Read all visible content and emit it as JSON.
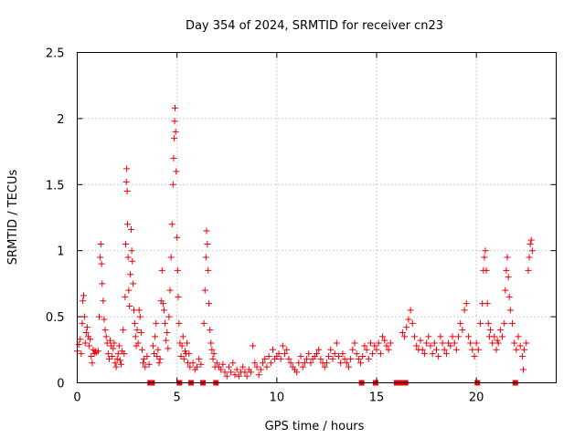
{
  "chart_data": {
    "type": "scatter",
    "title": "Day 354 of 2024, SRMTID for receiver cn23",
    "xlabel": "GPS time / hours",
    "ylabel": "SRMTID / TECUs",
    "xlim": [
      0,
      24
    ],
    "ylim": [
      0,
      2.5
    ],
    "xticks": [
      0,
      5,
      10,
      15,
      20
    ],
    "xtick_labels": [
      "0",
      "5",
      "10",
      "15",
      "20"
    ],
    "yticks": [
      0,
      0.5,
      1,
      1.5,
      2,
      2.5
    ],
    "ytick_labels": [
      "0",
      "0.5",
      "1",
      "1.5",
      "2",
      "2.5"
    ],
    "grid": true,
    "marker": "+",
    "color": "#e8000b",
    "series": [
      {
        "name": "cn23",
        "points": [
          [
            0.0,
            0.24
          ],
          [
            0.08,
            0.29
          ],
          [
            0.15,
            0.33
          ],
          [
            0.2,
            0.22
          ],
          [
            0.25,
            0.45
          ],
          [
            0.28,
            0.62
          ],
          [
            0.32,
            0.66
          ],
          [
            0.36,
            0.5
          ],
          [
            0.4,
            0.3
          ],
          [
            0.45,
            0.38
          ],
          [
            0.5,
            0.42
          ],
          [
            0.55,
            0.35
          ],
          [
            0.6,
            0.28
          ],
          [
            0.65,
            0.33
          ],
          [
            0.7,
            0.2
          ],
          [
            0.75,
            0.15
          ],
          [
            0.8,
            0.25
          ],
          [
            0.85,
            0.22
          ],
          [
            0.9,
            0.24
          ],
          [
            0.95,
            0.23
          ],
          [
            1.05,
            0.24
          ],
          [
            1.1,
            0.5
          ],
          [
            1.15,
            0.95
          ],
          [
            1.18,
            1.05
          ],
          [
            1.22,
            0.9
          ],
          [
            1.25,
            0.75
          ],
          [
            1.3,
            0.62
          ],
          [
            1.35,
            0.48
          ],
          [
            1.4,
            0.4
          ],
          [
            1.45,
            0.35
          ],
          [
            1.5,
            0.3
          ],
          [
            1.55,
            0.22
          ],
          [
            1.6,
            0.18
          ],
          [
            1.65,
            0.32
          ],
          [
            1.7,
            0.28
          ],
          [
            1.75,
            0.2
          ],
          [
            1.8,
            0.26
          ],
          [
            1.85,
            0.3
          ],
          [
            1.9,
            0.15
          ],
          [
            1.95,
            0.12
          ],
          [
            2.0,
            0.18
          ],
          [
            2.05,
            0.22
          ],
          [
            2.1,
            0.28
          ],
          [
            2.15,
            0.17
          ],
          [
            2.2,
            0.14
          ],
          [
            2.25,
            0.24
          ],
          [
            2.3,
            0.4
          ],
          [
            2.35,
            0.22
          ],
          [
            2.4,
            0.65
          ],
          [
            2.43,
            1.05
          ],
          [
            2.46,
            1.52
          ],
          [
            2.48,
            1.62
          ],
          [
            2.5,
            1.45
          ],
          [
            2.52,
            1.2
          ],
          [
            2.55,
            0.95
          ],
          [
            2.58,
            0.7
          ],
          [
            2.62,
            0.58
          ],
          [
            2.66,
            0.82
          ],
          [
            2.7,
            1.16
          ],
          [
            2.73,
            1.0
          ],
          [
            2.76,
            0.92
          ],
          [
            2.8,
            0.75
          ],
          [
            2.84,
            0.55
          ],
          [
            2.88,
            0.45
          ],
          [
            2.92,
            0.35
          ],
          [
            2.96,
            0.28
          ],
          [
            3.0,
            0.4
          ],
          [
            3.05,
            0.3
          ],
          [
            3.1,
            0.55
          ],
          [
            3.15,
            0.5
          ],
          [
            3.2,
            0.38
          ],
          [
            3.25,
            0.25
          ],
          [
            3.3,
            0.15
          ],
          [
            3.35,
            0.18
          ],
          [
            3.4,
            0.12
          ],
          [
            3.5,
            0.2
          ],
          [
            3.6,
            0.14
          ],
          [
            3.65,
            0.0
          ],
          [
            3.75,
            0.0
          ],
          [
            3.8,
            0.28
          ],
          [
            3.85,
            0.22
          ],
          [
            3.9,
            0.35
          ],
          [
            3.95,
            0.45
          ],
          [
            4.0,
            0.2
          ],
          [
            4.05,
            0.25
          ],
          [
            4.1,
            0.15
          ],
          [
            4.15,
            0.18
          ],
          [
            4.2,
            0.62
          ],
          [
            4.25,
            0.85
          ],
          [
            4.3,
            0.6
          ],
          [
            4.35,
            0.55
          ],
          [
            4.4,
            0.45
          ],
          [
            4.45,
            0.32
          ],
          [
            4.5,
            0.38
          ],
          [
            4.55,
            0.26
          ],
          [
            4.6,
            0.5
          ],
          [
            4.65,
            0.7
          ],
          [
            4.7,
            0.95
          ],
          [
            4.75,
            1.2
          ],
          [
            4.8,
            1.5
          ],
          [
            4.83,
            1.7
          ],
          [
            4.86,
            1.85
          ],
          [
            4.88,
            1.98
          ],
          [
            4.9,
            2.08
          ],
          [
            4.93,
            1.9
          ],
          [
            4.96,
            1.6
          ],
          [
            5.0,
            1.1
          ],
          [
            5.03,
            0.85
          ],
          [
            5.06,
            0.65
          ],
          [
            5.1,
            0.45
          ],
          [
            5.12,
            0.0
          ],
          [
            5.15,
            0.3
          ],
          [
            5.2,
            0.2
          ],
          [
            5.25,
            0.28
          ],
          [
            5.3,
            0.35
          ],
          [
            5.35,
            0.18
          ],
          [
            5.4,
            0.24
          ],
          [
            5.45,
            0.22
          ],
          [
            5.5,
            0.3
          ],
          [
            5.55,
            0.15
          ],
          [
            5.6,
            0.22
          ],
          [
            5.65,
            0.12
          ],
          [
            5.7,
            0.0
          ],
          [
            5.8,
            0.15
          ],
          [
            5.9,
            0.1
          ],
          [
            6.0,
            0.12
          ],
          [
            6.1,
            0.18
          ],
          [
            6.2,
            0.14
          ],
          [
            6.3,
            0.0
          ],
          [
            6.35,
            0.45
          ],
          [
            6.4,
            0.7
          ],
          [
            6.45,
            0.95
          ],
          [
            6.48,
            1.15
          ],
          [
            6.52,
            1.05
          ],
          [
            6.56,
            0.85
          ],
          [
            6.6,
            0.6
          ],
          [
            6.65,
            0.4
          ],
          [
            6.7,
            0.3
          ],
          [
            6.75,
            0.25
          ],
          [
            6.8,
            0.18
          ],
          [
            6.85,
            0.22
          ],
          [
            6.9,
            0.12
          ],
          [
            6.95,
            0.0
          ],
          [
            7.0,
            0.15
          ],
          [
            7.1,
            0.12
          ],
          [
            7.2,
            0.1
          ],
          [
            7.3,
            0.14
          ],
          [
            7.4,
            0.08
          ],
          [
            7.5,
            0.05
          ],
          [
            7.6,
            0.12
          ],
          [
            7.7,
            0.08
          ],
          [
            7.8,
            0.15
          ],
          [
            7.9,
            0.06
          ],
          [
            8.0,
            0.1
          ],
          [
            8.1,
            0.05
          ],
          [
            8.2,
            0.08
          ],
          [
            8.3,
            0.12
          ],
          [
            8.4,
            0.08
          ],
          [
            8.5,
            0.05
          ],
          [
            8.6,
            0.1
          ],
          [
            8.7,
            0.08
          ],
          [
            8.8,
            0.28
          ],
          [
            8.9,
            0.15
          ],
          [
            9.0,
            0.12
          ],
          [
            9.1,
            0.06
          ],
          [
            9.2,
            0.1
          ],
          [
            9.3,
            0.15
          ],
          [
            9.4,
            0.18
          ],
          [
            9.5,
            0.12
          ],
          [
            9.6,
            0.2
          ],
          [
            9.7,
            0.15
          ],
          [
            9.8,
            0.25
          ],
          [
            9.9,
            0.18
          ],
          [
            10.0,
            0.2
          ],
          [
            10.1,
            0.22
          ],
          [
            10.2,
            0.18
          ],
          [
            10.3,
            0.28
          ],
          [
            10.4,
            0.22
          ],
          [
            10.5,
            0.25
          ],
          [
            10.6,
            0.18
          ],
          [
            10.7,
            0.15
          ],
          [
            10.8,
            0.12
          ],
          [
            10.9,
            0.1
          ],
          [
            11.0,
            0.08
          ],
          [
            11.1,
            0.15
          ],
          [
            11.2,
            0.2
          ],
          [
            11.3,
            0.12
          ],
          [
            11.4,
            0.15
          ],
          [
            11.5,
            0.18
          ],
          [
            11.6,
            0.22
          ],
          [
            11.7,
            0.15
          ],
          [
            11.8,
            0.18
          ],
          [
            11.9,
            0.2
          ],
          [
            12.0,
            0.22
          ],
          [
            12.1,
            0.25
          ],
          [
            12.2,
            0.18
          ],
          [
            12.3,
            0.15
          ],
          [
            12.4,
            0.12
          ],
          [
            12.5,
            0.15
          ],
          [
            12.6,
            0.2
          ],
          [
            12.7,
            0.25
          ],
          [
            12.8,
            0.18
          ],
          [
            12.9,
            0.22
          ],
          [
            13.0,
            0.3
          ],
          [
            13.1,
            0.2
          ],
          [
            13.2,
            0.15
          ],
          [
            13.3,
            0.22
          ],
          [
            13.4,
            0.18
          ],
          [
            13.5,
            0.15
          ],
          [
            13.6,
            0.12
          ],
          [
            13.7,
            0.18
          ],
          [
            13.8,
            0.25
          ],
          [
            13.9,
            0.3
          ],
          [
            14.0,
            0.22
          ],
          [
            14.1,
            0.18
          ],
          [
            14.2,
            0.15
          ],
          [
            14.25,
            0.0
          ],
          [
            14.3,
            0.2
          ],
          [
            14.4,
            0.28
          ],
          [
            14.5,
            0.25
          ],
          [
            14.6,
            0.18
          ],
          [
            14.7,
            0.3
          ],
          [
            14.8,
            0.22
          ],
          [
            14.9,
            0.28
          ],
          [
            14.95,
            0.0
          ],
          [
            15.0,
            0.25
          ],
          [
            15.1,
            0.3
          ],
          [
            15.2,
            0.22
          ],
          [
            15.3,
            0.35
          ],
          [
            15.4,
            0.32
          ],
          [
            15.5,
            0.28
          ],
          [
            15.6,
            0.25
          ],
          [
            15.7,
            0.3
          ],
          [
            16.0,
            0.0
          ],
          [
            16.2,
            0.0
          ],
          [
            16.3,
            0.38
          ],
          [
            16.4,
            0.35
          ],
          [
            16.45,
            0.0
          ],
          [
            16.5,
            0.42
          ],
          [
            16.6,
            0.48
          ],
          [
            16.7,
            0.55
          ],
          [
            16.8,
            0.45
          ],
          [
            16.9,
            0.35
          ],
          [
            17.0,
            0.28
          ],
          [
            17.1,
            0.25
          ],
          [
            17.2,
            0.32
          ],
          [
            17.3,
            0.25
          ],
          [
            17.4,
            0.22
          ],
          [
            17.5,
            0.3
          ],
          [
            17.6,
            0.35
          ],
          [
            17.7,
            0.28
          ],
          [
            17.8,
            0.22
          ],
          [
            17.9,
            0.3
          ],
          [
            18.0,
            0.25
          ],
          [
            18.1,
            0.2
          ],
          [
            18.2,
            0.35
          ],
          [
            18.3,
            0.3
          ],
          [
            18.4,
            0.25
          ],
          [
            18.5,
            0.22
          ],
          [
            18.6,
            0.3
          ],
          [
            18.7,
            0.28
          ],
          [
            18.8,
            0.35
          ],
          [
            18.9,
            0.3
          ],
          [
            19.0,
            0.25
          ],
          [
            19.1,
            0.35
          ],
          [
            19.2,
            0.45
          ],
          [
            19.3,
            0.4
          ],
          [
            19.4,
            0.55
          ],
          [
            19.5,
            0.6
          ],
          [
            19.6,
            0.35
          ],
          [
            19.7,
            0.3
          ],
          [
            19.8,
            0.25
          ],
          [
            19.9,
            0.2
          ],
          [
            20.0,
            0.3
          ],
          [
            20.05,
            0.0
          ],
          [
            20.1,
            0.25
          ],
          [
            20.2,
            0.45
          ],
          [
            20.3,
            0.6
          ],
          [
            20.35,
            0.85
          ],
          [
            20.4,
            0.95
          ],
          [
            20.45,
            1.0
          ],
          [
            20.5,
            0.85
          ],
          [
            20.55,
            0.6
          ],
          [
            20.6,
            0.45
          ],
          [
            20.65,
            0.35
          ],
          [
            20.7,
            0.4
          ],
          [
            20.8,
            0.3
          ],
          [
            20.9,
            0.35
          ],
          [
            21.0,
            0.25
          ],
          [
            21.05,
            0.32
          ],
          [
            21.1,
            0.3
          ],
          [
            21.2,
            0.4
          ],
          [
            21.3,
            0.35
          ],
          [
            21.4,
            0.45
          ],
          [
            21.45,
            0.7
          ],
          [
            21.5,
            0.85
          ],
          [
            21.55,
            0.95
          ],
          [
            21.6,
            0.8
          ],
          [
            21.65,
            0.65
          ],
          [
            21.7,
            0.55
          ],
          [
            21.8,
            0.45
          ],
          [
            21.9,
            0.3
          ],
          [
            21.95,
            0.0
          ],
          [
            22.0,
            0.25
          ],
          [
            22.1,
            0.35
          ],
          [
            22.2,
            0.28
          ],
          [
            22.3,
            0.2
          ],
          [
            22.35,
            0.1
          ],
          [
            22.4,
            0.25
          ],
          [
            22.5,
            0.3
          ],
          [
            22.6,
            0.85
          ],
          [
            22.65,
            0.95
          ],
          [
            22.7,
            1.05
          ],
          [
            22.75,
            1.08
          ],
          [
            22.8,
            1.0
          ]
        ]
      }
    ]
  }
}
